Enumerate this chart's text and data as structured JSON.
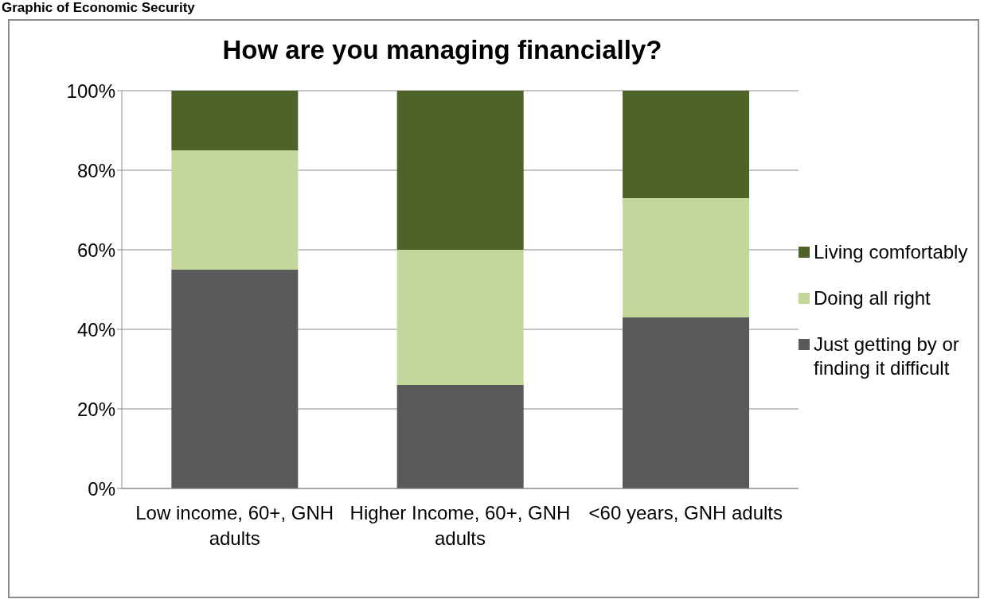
{
  "chart_data": {
    "type": "bar",
    "title": "How are you managing financially?",
    "annotations": [
      "Graphic of Economic Security"
    ],
    "categories": [
      "Low income, 60+, GNH adults",
      "Higher Income, 60+, GNH adults",
      "<60 years, GNH adults"
    ],
    "series": [
      {
        "name": "Just getting by or finding it difficult",
        "color": "#595959",
        "values": [
          55,
          26,
          43
        ]
      },
      {
        "name": "Doing all right",
        "color": "#c4d79b",
        "values": [
          30,
          34,
          30
        ]
      },
      {
        "name": "Living comfortably",
        "color": "#4f6228",
        "values": [
          15,
          40,
          27
        ]
      }
    ],
    "stacked": true,
    "ylim": [
      0,
      100
    ],
    "yticks": [
      {
        "value": 0,
        "label": "0%"
      },
      {
        "value": 20,
        "label": "20%"
      },
      {
        "value": 40,
        "label": "40%"
      },
      {
        "value": 60,
        "label": "60%"
      },
      {
        "value": 80,
        "label": "80%"
      },
      {
        "value": 100,
        "label": "100%"
      }
    ],
    "grid": "y",
    "legend": "right"
  }
}
